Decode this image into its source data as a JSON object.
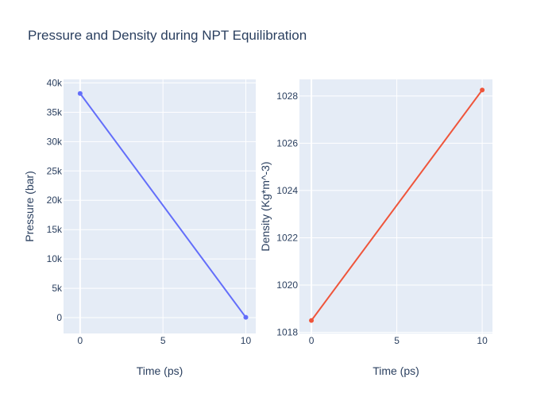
{
  "title": "Pressure and Density during NPT Equilibration",
  "chart_data": [
    {
      "type": "line",
      "x": [
        0,
        10
      ],
      "series": [
        {
          "values": [
            38200,
            50
          ],
          "color": "#636efa"
        }
      ],
      "xlabel": "Time (ps)",
      "ylabel": "Pressure (bar)",
      "xlim": [
        -1,
        10.6
      ],
      "ylim": [
        -2700,
        40600
      ],
      "xticks": [
        0,
        5,
        10
      ],
      "xtick_labels": [
        "0",
        "5",
        "10"
      ],
      "yticks": [
        0,
        5000,
        10000,
        15000,
        20000,
        25000,
        30000,
        35000,
        40000
      ],
      "ytick_labels": [
        "0",
        "5k",
        "10k",
        "15k",
        "20k",
        "25k",
        "30k",
        "35k",
        "40k"
      ],
      "grid": true
    },
    {
      "type": "line",
      "x": [
        0,
        10
      ],
      "series": [
        {
          "values": [
            1018.5,
            1028.25
          ],
          "color": "#ef553b"
        }
      ],
      "xlabel": "Time (ps)",
      "ylabel": "Density (Kg*m^-3)",
      "xlim": [
        -0.7,
        10.6
      ],
      "ylim": [
        1017.95,
        1028.7
      ],
      "xticks": [
        0,
        5,
        10
      ],
      "xtick_labels": [
        "0",
        "5",
        "10"
      ],
      "yticks": [
        1018,
        1020,
        1022,
        1024,
        1026,
        1028
      ],
      "ytick_labels": [
        "1018",
        "1020",
        "1022",
        "1024",
        "1026",
        "1028"
      ],
      "grid": true
    }
  ]
}
